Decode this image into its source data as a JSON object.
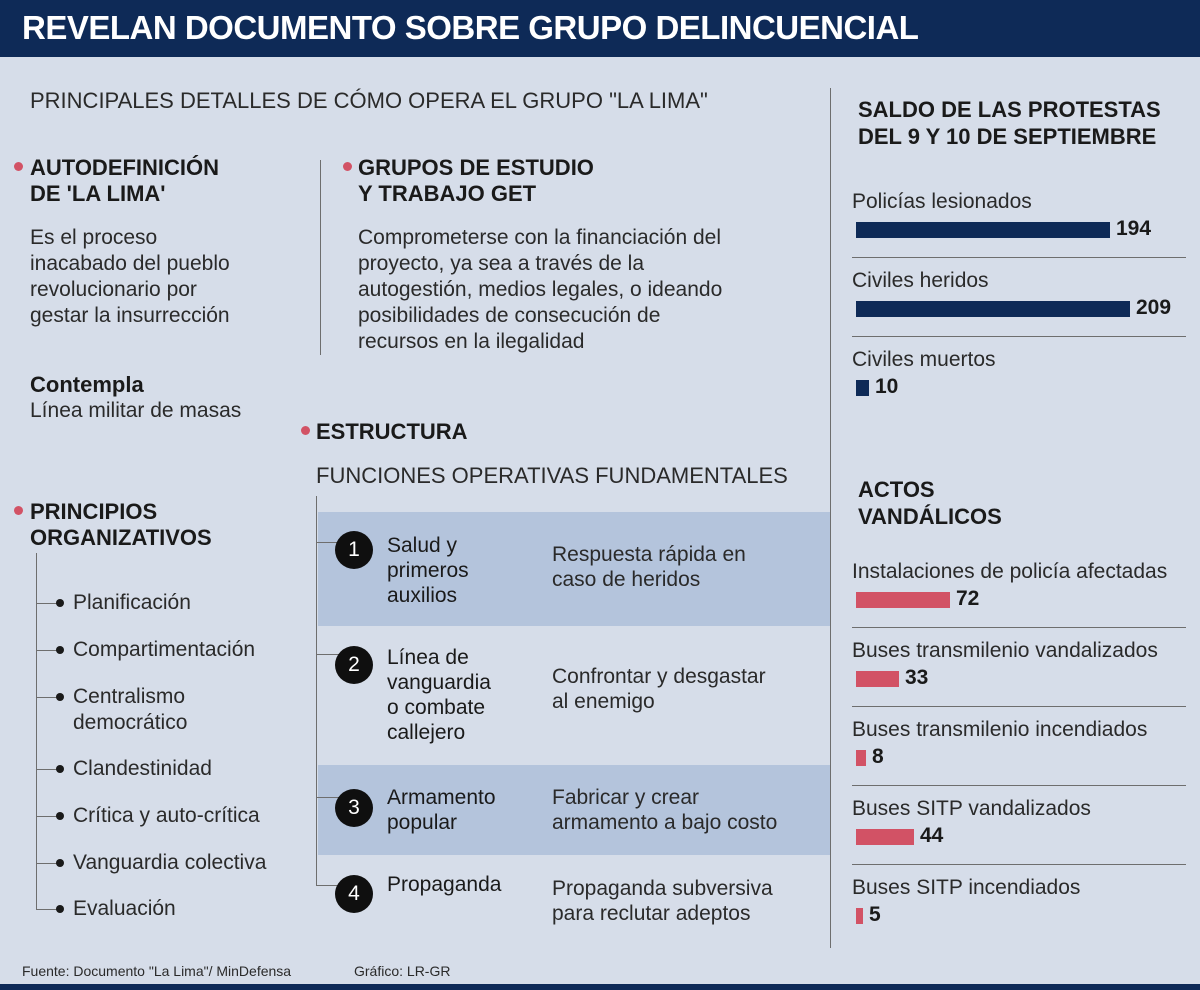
{
  "header": {
    "title": "REVELAN DOCUMENTO SOBRE GRUPO DELINCUENCIAL"
  },
  "subtitle": "PRINCIPALES DETALLES DE CÓMO OPERA EL GRUPO \"LA LIMA\"",
  "autodefinicion": {
    "heading_line1": "AUTODEFINICIÓN",
    "heading_line2": "DE 'LA LIMA'",
    "text": [
      "Es el proceso",
      "inacabado del pueblo",
      "revolucionario por",
      "gestar la insurrección"
    ]
  },
  "grupos_estudio": {
    "heading_line1": "GRUPOS DE ESTUDIO",
    "heading_line2": "Y TRABAJO GET",
    "text": [
      "Comprometerse con la financiación del",
      "proyecto, ya sea a través de la",
      "autogestión, medios legales, o ideando",
      "posibilidades de consecución de",
      "recursos en la ilegalidad"
    ]
  },
  "contempla": {
    "label": "Contempla",
    "value": "Línea militar de masas"
  },
  "principios": {
    "heading_line1": "PRINCIPIOS",
    "heading_line2": "ORGANIZATIVOS",
    "items": [
      "Planificación",
      "Compartimentación",
      "Centralismo",
      "democrático",
      "Clandestinidad",
      "Crítica y auto-crítica",
      "Vanguardia colectiva",
      "Evaluación"
    ]
  },
  "estructura": {
    "heading": "ESTRUCTURA",
    "subheading": "FUNCIONES OPERATIVAS FUNDAMENTALES",
    "functions": [
      {
        "number": "1",
        "name": [
          "Salud y",
          "primeros",
          "auxilios"
        ],
        "description": [
          "Respuesta rápida en",
          "caso de heridos"
        ]
      },
      {
        "number": "2",
        "name": [
          "Línea de",
          "vanguardia",
          "o combate",
          "callejero"
        ],
        "description": [
          "Confrontar y desgastar",
          "al enemigo"
        ]
      },
      {
        "number": "3",
        "name": [
          "Armamento",
          "popular"
        ],
        "description": [
          "Fabricar y crear",
          "armamento a bajo costo"
        ]
      },
      {
        "number": "4",
        "name": [
          "Propaganda"
        ],
        "description": [
          "Propaganda subversiva",
          "para reclutar adeptos"
        ]
      }
    ]
  },
  "colors": {
    "navy": "#0e2a57",
    "red": "#d25265",
    "background": "#d6dde9",
    "band": "#b4c4dc"
  },
  "chart_data": [
    {
      "type": "bar",
      "title": "SALDO DE LAS PROTESTAS DEL 9 Y 10 DE SEPTIEMBRE",
      "title_lines": [
        "SALDO DE LAS PROTESTAS",
        "DEL 9 Y 10 DE SEPTIEMBRE"
      ],
      "orientation": "horizontal",
      "color": "#0e2a57",
      "categories": [
        "Policías lesionados",
        "Civiles heridos",
        "Civiles muertos"
      ],
      "values": [
        194,
        209,
        10
      ]
    },
    {
      "type": "bar",
      "title": "ACTOS VANDÁLICOS",
      "title_lines": [
        "ACTOS",
        "VANDÁLICOS"
      ],
      "orientation": "horizontal",
      "color": "#d25265",
      "categories": [
        "Instalaciones de policía afectadas",
        "Buses transmilenio vandalizados",
        "Buses transmilenio incendiados",
        "Buses SITP vandalizados",
        "Buses SITP incendiados"
      ],
      "values": [
        72,
        33,
        8,
        44,
        5
      ]
    }
  ],
  "footer": {
    "source": "Fuente: Documento \"La Lima\"/ MinDefensa",
    "credit": "Gráfico: LR-GR"
  }
}
